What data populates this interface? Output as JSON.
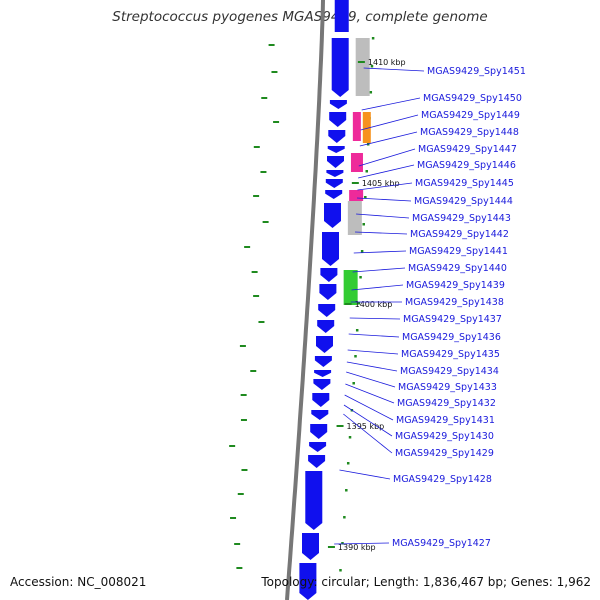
{
  "title": "Streptococcus pyogenes MGAS9429, complete genome",
  "footer": {
    "accession": "Accession: NC_008021",
    "topology": "Topology: circular; Length: 1,836,467 bp; Genes: 1,962"
  },
  "colors": {
    "background": "#ffffff",
    "backbone": "#777777",
    "cds": "#1010ee",
    "gene_label": "#1a1adc",
    "gc_tick": "#1f8a1f",
    "gray_feature": "#bdbdbd",
    "pink_feature": "#ee2a9a",
    "orange_feature": "#f7921e",
    "green_feature": "#33cc33"
  },
  "position_markers": [
    "1410 kbp",
    "1405 kbp",
    "1400 kbp",
    "1395 kbp",
    "1390 kbp"
  ],
  "genes": [
    "MGAS9429_Spy1451",
    "MGAS9429_Spy1450",
    "MGAS9429_Spy1449",
    "MGAS9429_Spy1448",
    "MGAS9429_Spy1447",
    "MGAS9429_Spy1446",
    "MGAS9429_Spy1445",
    "MGAS9429_Spy1444",
    "MGAS9429_Spy1443",
    "MGAS9429_Spy1442",
    "MGAS9429_Spy1441",
    "MGAS9429_Spy1440",
    "MGAS9429_Spy1439",
    "MGAS9429_Spy1438",
    "MGAS9429_Spy1437",
    "MGAS9429_Spy1436",
    "MGAS9429_Spy1435",
    "MGAS9429_Spy1434",
    "MGAS9429_Spy1433",
    "MGAS9429_Spy1432",
    "MGAS9429_Spy1431",
    "MGAS9429_Spy1430",
    "MGAS9429_Spy1429",
    "MGAS9429_Spy1428",
    "MGAS9429_Spy1427"
  ]
}
